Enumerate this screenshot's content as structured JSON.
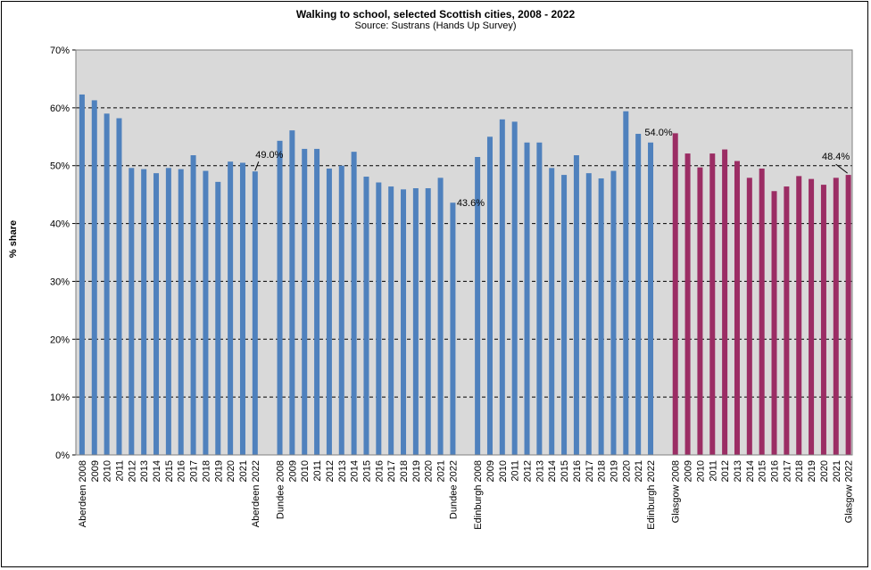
{
  "chart_data": {
    "type": "bar",
    "title": "Walking to school, selected Scottish cities, 2008 - 2022",
    "subtitle": "Source: Sustrans (Hands Up Survey)",
    "ylabel": "% share",
    "ylim": [
      0,
      70
    ],
    "yticks": [
      "0%",
      "10%",
      "20%",
      "30%",
      "40%",
      "50%",
      "60%",
      "70%"
    ],
    "grid": true,
    "colors": {
      "blue": "#4F81BD",
      "maroon": "#9B2D64",
      "plot_bg": "#D9D9D9"
    },
    "series": [
      {
        "name": "Aberdeen",
        "color": "#4F81BD",
        "categories": [
          "Aberdeen 2008",
          "2009",
          "2010",
          "2011",
          "2012",
          "2013",
          "2014",
          "2015",
          "2016",
          "2017",
          "2018",
          "2019",
          "2020",
          "2021",
          "Aberdeen 2022"
        ],
        "values": [
          62.3,
          61.3,
          59.0,
          58.2,
          49.6,
          49.4,
          48.7,
          49.6,
          49.4,
          51.8,
          49.1,
          47.2,
          50.7,
          50.5,
          49.0
        ],
        "label": "49.0%"
      },
      {
        "name": "Dundee",
        "color": "#4F81BD",
        "categories": [
          "Dundee 2008",
          "2009",
          "2010",
          "2011",
          "2012",
          "2013",
          "2014",
          "2015",
          "2016",
          "2017",
          "2018",
          "2019",
          "2020",
          "2021",
          "Dundee 2022"
        ],
        "values": [
          54.3,
          56.1,
          52.9,
          52.9,
          49.5,
          50.0,
          52.4,
          48.1,
          47.1,
          46.4,
          45.9,
          46.1,
          46.1,
          47.9,
          43.6
        ],
        "label": "43.6%"
      },
      {
        "name": "Edinburgh",
        "color": "#4F81BD",
        "categories": [
          "Edinburgh 2008",
          "2009",
          "2010",
          "2011",
          "2012",
          "2013",
          "2014",
          "2015",
          "2016",
          "2017",
          "2018",
          "2019",
          "2020",
          "2021",
          "Edinburgh 2022"
        ],
        "values": [
          51.5,
          55.0,
          58.0,
          57.6,
          54.0,
          54.0,
          49.6,
          48.4,
          51.8,
          48.7,
          47.8,
          49.1,
          59.4,
          55.5,
          54.0
        ],
        "label": "54.0%"
      },
      {
        "name": "Glasgow",
        "color": "#9B2D64",
        "categories": [
          "Glasgow 2008",
          "2009",
          "2010",
          "2011",
          "2012",
          "2013",
          "2014",
          "2015",
          "2016",
          "2017",
          "2018",
          "2019",
          "2020",
          "2021",
          "Glasgow 2022"
        ],
        "values": [
          55.6,
          52.1,
          49.7,
          52.1,
          52.8,
          50.8,
          47.9,
          49.5,
          45.6,
          46.4,
          48.2,
          47.7,
          46.7,
          47.9,
          48.4
        ],
        "label": "48.4%"
      }
    ]
  }
}
